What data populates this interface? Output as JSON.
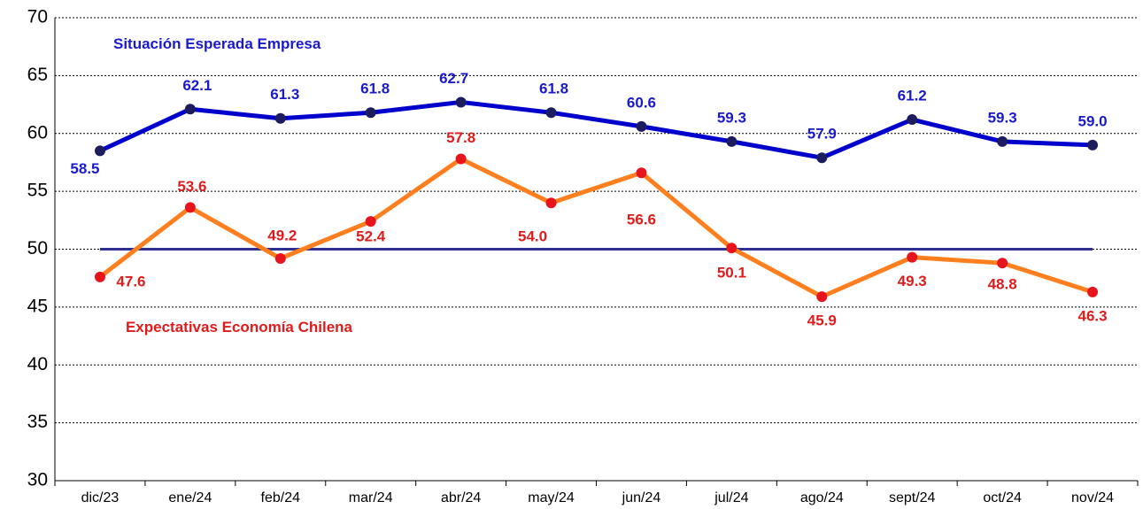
{
  "chart_data": {
    "type": "line",
    "categories": [
      "dic/23",
      "ene/24",
      "feb/24",
      "mar/24",
      "abr/24",
      "may/24",
      "jun/24",
      "jul/24",
      "ago/24",
      "sept/24",
      "oct/24",
      "nov/24"
    ],
    "series": [
      {
        "name": "Situación Esperada Empresa",
        "color": "#0000cc",
        "marker_color": "#1c1c5e",
        "label_color": "#1a1acc",
        "values": [
          58.5,
          62.1,
          61.3,
          61.8,
          62.7,
          61.8,
          60.6,
          59.3,
          57.9,
          61.2,
          59.3,
          59.0
        ],
        "value_labels": [
          "58.5",
          "62.1",
          "61.3",
          "61.8",
          "62.7",
          "61.8",
          "60.6",
          "59.3",
          "57.9",
          "61.2",
          "59.3",
          "59.0"
        ]
      },
      {
        "name": "Expectativas Economía Chilena",
        "color": "#ff7f1e",
        "marker_color": "#e8141c",
        "label_color": "#e01b1b",
        "values": [
          47.6,
          53.6,
          49.2,
          52.4,
          57.8,
          54.0,
          56.6,
          50.1,
          45.9,
          49.3,
          48.8,
          46.3
        ],
        "value_labels": [
          "47.6",
          "53.6",
          "49.2",
          "52.4",
          "57.8",
          "54.0",
          "56.6",
          "50.1",
          "45.9",
          "49.3",
          "48.8",
          "46.3"
        ]
      }
    ],
    "reference_line": {
      "value": 50,
      "color": "#2e3192"
    },
    "ylim": [
      30,
      70
    ],
    "yticks": [
      30,
      35,
      40,
      45,
      50,
      55,
      60,
      65,
      70
    ],
    "grid": true
  }
}
